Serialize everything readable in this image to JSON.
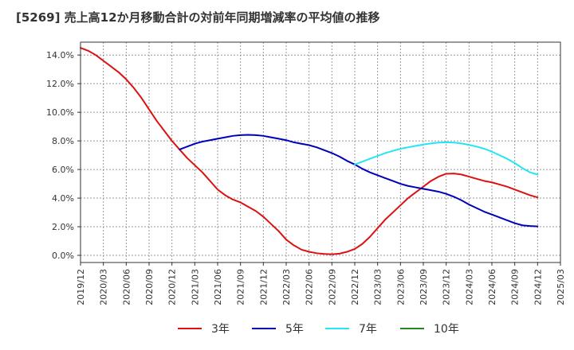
{
  "chart_data": {
    "type": "line",
    "title": "[5269]  売上高12か月移動合計の対前年同期増減率の平均値の推移",
    "xlabel": "",
    "ylabel": "",
    "ylim": [
      -0.5,
      14.9
    ],
    "xlim": [
      "2019/12",
      "2025/03"
    ],
    "x_tick_labels": [
      "2019/12",
      "2020/03",
      "2020/06",
      "2020/09",
      "2020/12",
      "2021/03",
      "2021/06",
      "2021/09",
      "2021/12",
      "2022/03",
      "2022/06",
      "2022/09",
      "2022/12",
      "2023/03",
      "2023/06",
      "2023/09",
      "2023/12",
      "2024/03",
      "2024/06",
      "2024/09",
      "2024/12",
      "2025/03"
    ],
    "y_ticks": [
      0,
      2,
      4,
      6,
      8,
      10,
      12,
      14
    ],
    "y_tick_labels": [
      "0.0%",
      "2.0%",
      "4.0%",
      "6.0%",
      "8.0%",
      "10.0%",
      "12.0%",
      "14.0%"
    ],
    "grid": true,
    "legend_position": "bottom",
    "series": [
      {
        "name": "3年",
        "color": "#dd1111",
        "points": [
          [
            "2019/12",
            14.5
          ],
          [
            "2020/01",
            14.3
          ],
          [
            "2020/02",
            14.0
          ],
          [
            "2020/03",
            13.6
          ],
          [
            "2020/04",
            13.2
          ],
          [
            "2020/05",
            12.8
          ],
          [
            "2020/06",
            12.3
          ],
          [
            "2020/07",
            11.7
          ],
          [
            "2020/08",
            11.0
          ],
          [
            "2020/09",
            10.2
          ],
          [
            "2020/10",
            9.4
          ],
          [
            "2020/11",
            8.7
          ],
          [
            "2020/12",
            8.0
          ],
          [
            "2021/01",
            7.4
          ],
          [
            "2021/02",
            6.8
          ],
          [
            "2021/03",
            6.3
          ],
          [
            "2021/04",
            5.8
          ],
          [
            "2021/05",
            5.2
          ],
          [
            "2021/06",
            4.6
          ],
          [
            "2021/07",
            4.2
          ],
          [
            "2021/08",
            3.9
          ],
          [
            "2021/09",
            3.7
          ],
          [
            "2021/10",
            3.4
          ],
          [
            "2021/11",
            3.1
          ],
          [
            "2021/12",
            2.7
          ],
          [
            "2022/01",
            2.2
          ],
          [
            "2022/02",
            1.7
          ],
          [
            "2022/03",
            1.1
          ],
          [
            "2022/04",
            0.7
          ],
          [
            "2022/05",
            0.4
          ],
          [
            "2022/06",
            0.25
          ],
          [
            "2022/07",
            0.15
          ],
          [
            "2022/08",
            0.1
          ],
          [
            "2022/09",
            0.08
          ],
          [
            "2022/10",
            0.12
          ],
          [
            "2022/11",
            0.25
          ],
          [
            "2022/12",
            0.45
          ],
          [
            "2023/01",
            0.8
          ],
          [
            "2023/02",
            1.3
          ],
          [
            "2023/03",
            1.9
          ],
          [
            "2023/04",
            2.5
          ],
          [
            "2023/05",
            3.0
          ],
          [
            "2023/06",
            3.5
          ],
          [
            "2023/07",
            4.0
          ],
          [
            "2023/08",
            4.4
          ],
          [
            "2023/09",
            4.8
          ],
          [
            "2023/10",
            5.2
          ],
          [
            "2023/11",
            5.5
          ],
          [
            "2023/12",
            5.7
          ],
          [
            "2024/01",
            5.72
          ],
          [
            "2024/02",
            5.65
          ],
          [
            "2024/03",
            5.5
          ],
          [
            "2024/04",
            5.35
          ],
          [
            "2024/05",
            5.2
          ],
          [
            "2024/06",
            5.1
          ],
          [
            "2024/07",
            4.95
          ],
          [
            "2024/08",
            4.8
          ],
          [
            "2024/09",
            4.6
          ],
          [
            "2024/10",
            4.4
          ],
          [
            "2024/11",
            4.2
          ],
          [
            "2024/12",
            4.05
          ]
        ]
      },
      {
        "name": "5年",
        "color": "#0000bb",
        "points": [
          [
            "2021/01",
            7.4
          ],
          [
            "2021/02",
            7.6
          ],
          [
            "2021/03",
            7.8
          ],
          [
            "2021/04",
            7.95
          ],
          [
            "2021/05",
            8.05
          ],
          [
            "2021/06",
            8.15
          ],
          [
            "2021/07",
            8.25
          ],
          [
            "2021/08",
            8.35
          ],
          [
            "2021/09",
            8.4
          ],
          [
            "2021/10",
            8.42
          ],
          [
            "2021/11",
            8.4
          ],
          [
            "2021/12",
            8.35
          ],
          [
            "2022/01",
            8.25
          ],
          [
            "2022/02",
            8.15
          ],
          [
            "2022/03",
            8.05
          ],
          [
            "2022/04",
            7.9
          ],
          [
            "2022/05",
            7.8
          ],
          [
            "2022/06",
            7.7
          ],
          [
            "2022/07",
            7.55
          ],
          [
            "2022/08",
            7.35
          ],
          [
            "2022/09",
            7.15
          ],
          [
            "2022/10",
            6.9
          ],
          [
            "2022/11",
            6.6
          ],
          [
            "2022/12",
            6.35
          ],
          [
            "2023/01",
            6.05
          ],
          [
            "2023/02",
            5.8
          ],
          [
            "2023/03",
            5.6
          ],
          [
            "2023/04",
            5.4
          ],
          [
            "2023/05",
            5.2
          ],
          [
            "2023/06",
            5.0
          ],
          [
            "2023/07",
            4.85
          ],
          [
            "2023/08",
            4.75
          ],
          [
            "2023/09",
            4.65
          ],
          [
            "2023/10",
            4.55
          ],
          [
            "2023/11",
            4.45
          ],
          [
            "2023/12",
            4.3
          ],
          [
            "2024/01",
            4.1
          ],
          [
            "2024/02",
            3.85
          ],
          [
            "2024/03",
            3.55
          ],
          [
            "2024/04",
            3.3
          ],
          [
            "2024/05",
            3.05
          ],
          [
            "2024/06",
            2.85
          ],
          [
            "2024/07",
            2.65
          ],
          [
            "2024/08",
            2.45
          ],
          [
            "2024/09",
            2.25
          ],
          [
            "2024/10",
            2.1
          ],
          [
            "2024/11",
            2.05
          ],
          [
            "2024/12",
            2.02
          ]
        ]
      },
      {
        "name": "7年",
        "color": "#22e5f5",
        "points": [
          [
            "2022/12",
            6.35
          ],
          [
            "2023/01",
            6.55
          ],
          [
            "2023/02",
            6.75
          ],
          [
            "2023/03",
            6.95
          ],
          [
            "2023/04",
            7.15
          ],
          [
            "2023/05",
            7.3
          ],
          [
            "2023/06",
            7.45
          ],
          [
            "2023/07",
            7.55
          ],
          [
            "2023/08",
            7.65
          ],
          [
            "2023/09",
            7.75
          ],
          [
            "2023/10",
            7.82
          ],
          [
            "2023/11",
            7.88
          ],
          [
            "2023/12",
            7.9
          ],
          [
            "2024/01",
            7.88
          ],
          [
            "2024/02",
            7.82
          ],
          [
            "2024/03",
            7.72
          ],
          [
            "2024/04",
            7.6
          ],
          [
            "2024/05",
            7.45
          ],
          [
            "2024/06",
            7.25
          ],
          [
            "2024/07",
            7.0
          ],
          [
            "2024/08",
            6.75
          ],
          [
            "2024/09",
            6.45
          ],
          [
            "2024/10",
            6.1
          ],
          [
            "2024/11",
            5.8
          ],
          [
            "2024/12",
            5.65
          ]
        ]
      },
      {
        "name": "10年",
        "color": "#228822",
        "points": []
      }
    ]
  }
}
